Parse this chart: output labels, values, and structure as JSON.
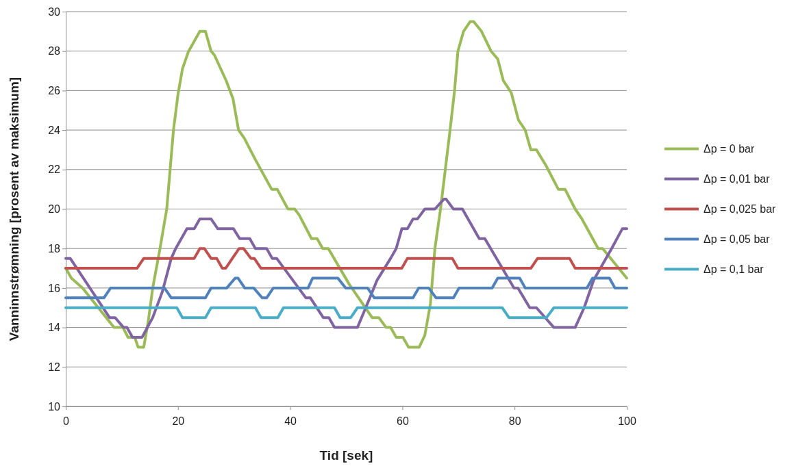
{
  "chart_data": {
    "type": "line",
    "xlabel": "Tid [sek]",
    "ylabel": "Vanninnstrømning [prosent av maksimum]",
    "xlim": [
      0,
      100
    ],
    "ylim": [
      10,
      30
    ],
    "xticks": [
      0,
      20,
      40,
      60,
      80,
      100
    ],
    "yticks": [
      10,
      12,
      14,
      16,
      18,
      20,
      22,
      24,
      26,
      28,
      30
    ],
    "grid": "y",
    "legend": "right",
    "marker": "none",
    "series": [
      {
        "name": "Δp = 0 bar",
        "color": "#9bbb59",
        "x": [
          0,
          1,
          3,
          8.6,
          10.2,
          11.1,
          12.3,
          12.9,
          13.9,
          14.7,
          15.5,
          16.8,
          18,
          19.2,
          20,
          20.8,
          21.9,
          22.7,
          23.9,
          24.9,
          25.9,
          26.5,
          28.6,
          29.8,
          30.8,
          31.8,
          33.8,
          36.7,
          37.7,
          39.6,
          40.8,
          41.6,
          43.8,
          44.8,
          45.8,
          46.8,
          50.5,
          54.6,
          55.8,
          57.1,
          57.9,
          58.9,
          60.1,
          61.1,
          63,
          64,
          65,
          65.8,
          66.8,
          68.5,
          69.3,
          69.9,
          70.9,
          72.1,
          72.7,
          74.1,
          75.8,
          77,
          78,
          79.4,
          80.7,
          81.9,
          82.9,
          83.9,
          85.6,
          87.8,
          89,
          90.8,
          92,
          94.9,
          95.7,
          100
        ],
        "values": [
          17,
          16.5,
          16,
          14,
          14,
          13.5,
          13.5,
          13,
          13,
          14.3,
          16,
          18,
          20,
          24,
          25.8,
          27.1,
          28,
          28.4,
          29,
          29,
          28,
          27.8,
          26.5,
          25.6,
          24,
          23.6,
          22.5,
          21,
          21,
          20,
          20,
          19.7,
          18.5,
          18.5,
          18,
          18,
          16.2,
          14.5,
          14.5,
          14,
          14,
          13.5,
          13.5,
          13,
          13,
          13.6,
          15.2,
          18,
          20,
          24,
          26,
          28,
          29,
          29.5,
          29.5,
          29,
          28,
          27.6,
          26.5,
          25.9,
          24.5,
          24,
          23,
          23,
          22.2,
          21,
          21,
          20,
          19.5,
          18,
          18,
          16.5
        ]
      },
      {
        "name": "Δp = 0,01 bar",
        "color": "#8064a2",
        "x": [
          0,
          0.8,
          7.8,
          8.8,
          10.3,
          10.9,
          11.9,
          13.6,
          15.5,
          17.2,
          18.8,
          19.6,
          21.6,
          22.9,
          23.9,
          25.9,
          27.1,
          29.9,
          31,
          32.8,
          33.8,
          35.8,
          36.8,
          37.6,
          42.8,
          43.6,
          45.9,
          46.9,
          47.9,
          52,
          54.2,
          55.5,
          57.9,
          58.9,
          59.9,
          60.9,
          61.9,
          62.7,
          64,
          65.8,
          67.4,
          67.8,
          69.1,
          70.7,
          73.7,
          74.7,
          79.9,
          80.6,
          82.7,
          83.9,
          87,
          90.8,
          92.4,
          94.1,
          97.3,
          99.2,
          100
        ],
        "values": [
          17.5,
          17.5,
          14.5,
          14.5,
          14,
          14,
          13.5,
          13.5,
          14.5,
          15.8,
          17.5,
          18,
          19,
          19,
          19.5,
          19.5,
          19,
          19,
          18.5,
          18.5,
          18,
          18,
          17.5,
          17.5,
          15.5,
          15.5,
          14.5,
          14.5,
          14,
          14,
          15.5,
          16.4,
          17.5,
          18,
          19,
          19,
          19.5,
          19.5,
          20,
          20,
          20.5,
          20.5,
          20,
          20,
          18.5,
          18.5,
          16,
          16,
          15,
          15,
          14,
          14,
          15,
          16.4,
          18,
          19,
          19
        ]
      },
      {
        "name": "Δp = 0,025 bar",
        "color": "#c0504d",
        "x": [
          0,
          12.7,
          13.9,
          22.9,
          23.9,
          24.7,
          25.9,
          26.9,
          27.9,
          28.5,
          30.9,
          31.7,
          33,
          33.6,
          34.8,
          59.9,
          60.9,
          68.9,
          69.9,
          82.9,
          84.1,
          89.8,
          90.8,
          100
        ],
        "values": [
          17,
          17,
          17.5,
          17.5,
          18,
          18,
          17.5,
          17.5,
          17,
          17,
          18,
          18,
          17.5,
          17.5,
          17,
          17,
          17.5,
          17.5,
          17,
          17,
          17.5,
          17.5,
          17,
          17
        ]
      },
      {
        "name": "Δp = 0,05 bar",
        "color": "#4f81bd",
        "x": [
          0,
          6.8,
          8,
          17.6,
          18.8,
          24.9,
          25.9,
          28.7,
          30.2,
          30.7,
          31.9,
          33.5,
          35,
          35.8,
          37,
          43.2,
          44,
          48.5,
          49.9,
          53.8,
          55,
          61.9,
          62.9,
          64.7,
          66,
          69.1,
          70.1,
          76,
          77,
          80.9,
          81.9,
          92.9,
          93.9,
          96.9,
          97.9,
          100
        ],
        "values": [
          15.5,
          15.5,
          16,
          16,
          15.5,
          15.5,
          16,
          16,
          16.5,
          16.5,
          16,
          16,
          15.5,
          15.5,
          16,
          16,
          16.5,
          16.5,
          16,
          16,
          15.5,
          15.5,
          16,
          16,
          15.5,
          15.5,
          16,
          16,
          16.5,
          16.5,
          16,
          16,
          16.5,
          16.5,
          16,
          16
        ]
      },
      {
        "name": "Δp = 0,1 bar",
        "color": "#4bacc6",
        "x": [
          0,
          19.8,
          20.8,
          24.9,
          25.9,
          33.8,
          34.8,
          37.8,
          38.8,
          47.9,
          48.9,
          50.8,
          52,
          77.8,
          79,
          85.7,
          87,
          100
        ],
        "values": [
          15,
          15,
          14.5,
          14.5,
          15,
          15,
          14.5,
          14.5,
          15,
          15,
          14.5,
          14.5,
          15,
          15,
          14.5,
          14.5,
          15,
          15
        ]
      }
    ]
  }
}
